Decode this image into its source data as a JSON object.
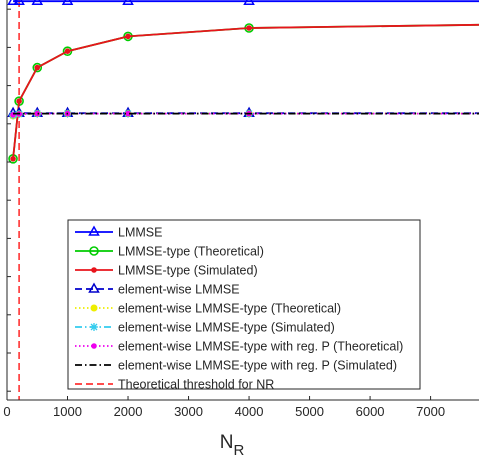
{
  "chart_data": {
    "type": "line",
    "xlabel": "N",
    "xlabel_sub": "R",
    "ylabel": "",
    "xlim": [
      0,
      7800
    ],
    "x_ticks": [
      0,
      1000,
      2000,
      3000,
      4000,
      5000,
      6000,
      7000
    ],
    "x_tick_labels": [
      "0",
      "1000",
      "2000",
      "3000",
      "4000",
      "5000",
      "6000",
      "7000"
    ],
    "grid": false,
    "legend_position": "lower-right",
    "y_scale_note": "y-axis tick labels are cropped out of the image; y values below are in relative units",
    "ylim": [
      0,
      1
    ],
    "y_tick_values": [
      0.022,
      0.1175,
      0.213,
      0.3085,
      0.404,
      0.4995,
      0.595,
      0.6905,
      0.786,
      0.8815,
      0.977
    ],
    "series": [
      {
        "name": "LMMSE",
        "color": "#0000ff",
        "line": "solid",
        "marker": "triangle",
        "x": [
          100,
          200,
          500,
          1000,
          2000,
          4000,
          7800
        ],
        "y": [
          0.997,
          0.997,
          0.997,
          0.997,
          0.997,
          0.997,
          0.997
        ]
      },
      {
        "name": "LMMSE-type (Theoretical)",
        "color": "#00cc00",
        "line": "solid",
        "marker": "circle-open",
        "x": [
          100,
          200,
          500,
          1000,
          2000,
          4000,
          7800
        ],
        "y": [
          0.603,
          0.747,
          0.831,
          0.872,
          0.909,
          0.93,
          0.938
        ]
      },
      {
        "name": "LMMSE-type (Simulated)",
        "color": "#e8141c",
        "line": "solid",
        "marker": "dot",
        "x": [
          100,
          200,
          500,
          1000,
          2000,
          4000,
          7800
        ],
        "y": [
          0.603,
          0.747,
          0.831,
          0.872,
          0.909,
          0.93,
          0.938
        ]
      },
      {
        "name": "element-wise LMMSE",
        "color": "#0000cc",
        "line": "dashed",
        "marker": "triangle",
        "x": [
          100,
          200,
          500,
          1000,
          2000,
          4000,
          7800
        ],
        "y": [
          0.717,
          0.717,
          0.717,
          0.717,
          0.717,
          0.717,
          0.717
        ]
      },
      {
        "name": "element-wise LMMSE-type (Theoretical)",
        "color": "#eeee00",
        "line": "dotted",
        "marker": "circle",
        "x": [
          100,
          200,
          500,
          1000,
          2000,
          4000,
          7800
        ],
        "y": [
          0.71,
          0.715,
          0.716,
          0.716,
          0.716,
          0.716,
          0.716
        ]
      },
      {
        "name": "element-wise LMMSE-type (Simulated)",
        "color": "#33ccee",
        "line": "dashdot",
        "marker": "asterisk",
        "x": [
          100,
          200,
          500,
          1000,
          2000,
          4000,
          7800
        ],
        "y": [
          0.712,
          0.715,
          0.716,
          0.716,
          0.716,
          0.716,
          0.716
        ]
      },
      {
        "name": "element-wise LMMSE-type with reg. P (Theoretical)",
        "color": "#ee00ee",
        "line": "dotted",
        "marker": "dot",
        "x": [
          100,
          200,
          500,
          1000,
          2000,
          4000,
          7800
        ],
        "y": [
          0.713,
          0.715,
          0.716,
          0.716,
          0.716,
          0.716,
          0.716
        ]
      },
      {
        "name": "element-wise LMMSE-type with reg. P (Simulated)",
        "color": "#000000",
        "line": "dashdot",
        "marker": "none",
        "x": [
          100,
          200,
          500,
          1000,
          2000,
          4000,
          7800
        ],
        "y": [
          0.716,
          0.716,
          0.716,
          0.716,
          0.716,
          0.716,
          0.716
        ]
      }
    ],
    "vertical_lines": [
      {
        "name": "Theoretical threshold for NR",
        "color": "#ff3333",
        "line": "dashed",
        "x": 200
      }
    ]
  }
}
